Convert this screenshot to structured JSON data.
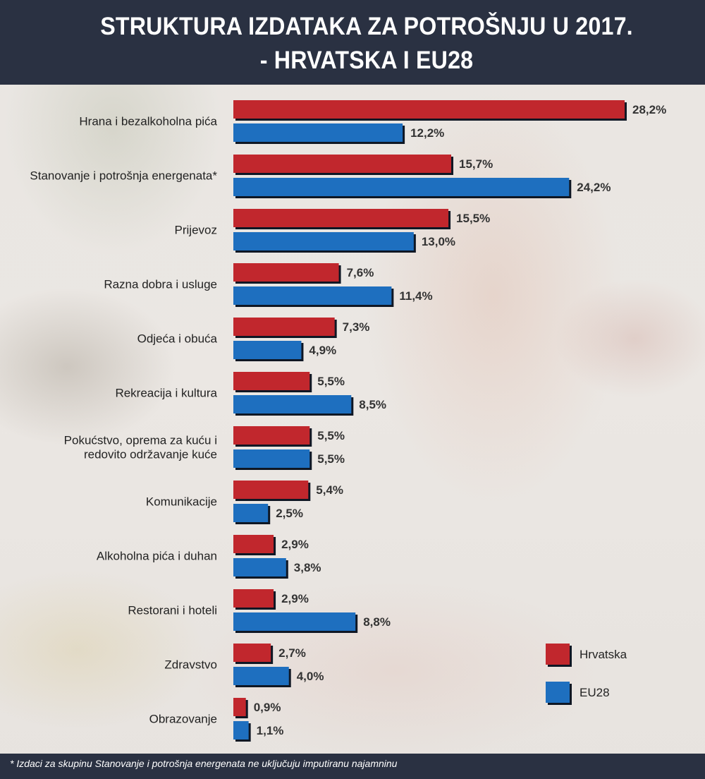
{
  "title_lines": [
    "STRUKTURA IZDATAKA ZA POTROŠNJU U 2017.",
    "- HRVATSKA I EU28"
  ],
  "footnote": "* Izdaci za skupinu Stanovanje i potrošnja energenata ne uključuju imputiranu najamninu",
  "colors": {
    "hrvatska": "#c1272d",
    "eu28": "#1e6fbf",
    "header": "#2a3142"
  },
  "chart_data": {
    "type": "bar",
    "orientation": "horizontal",
    "categories": [
      "Hrana i bezalkoholna pića",
      "Stanovanje i potrošnja energenata*",
      "Prijevoz",
      "Razna dobra i usluge",
      "Odjeća i obuća",
      "Rekreacija i kultura",
      [
        "Pokućstvo, oprema za kuću i",
        "redovito održavanje kuće"
      ],
      "Komunikacije",
      "Alkoholna pića i duhan",
      "Restorani i hoteli",
      "Zdravstvo",
      "Obrazovanje"
    ],
    "series": [
      {
        "name": "Hrvatska",
        "color": "#c1272d",
        "values": [
          28.2,
          15.7,
          15.5,
          7.6,
          7.3,
          5.5,
          5.5,
          5.4,
          2.9,
          2.9,
          2.7,
          0.9
        ]
      },
      {
        "name": "EU28",
        "color": "#1e6fbf",
        "values": [
          12.2,
          24.2,
          13.0,
          11.4,
          4.9,
          8.5,
          5.5,
          2.5,
          3.8,
          8.8,
          4.0,
          1.1
        ]
      }
    ],
    "value_labels": [
      [
        "28,2%",
        "15,7%",
        "15,5%",
        "7,6%",
        "7,3%",
        "5,5%",
        "5,5%",
        "5,4%",
        "2,9%",
        "2,9%",
        "2,7%",
        "0,9%"
      ],
      [
        "12,2%",
        "24,2%",
        "13,0%",
        "11,4%",
        "4,9%",
        "8,5%",
        "5,5%",
        "2,5%",
        "3,8%",
        "8,8%",
        "4,0%",
        "1,1%"
      ]
    ],
    "xlim": [
      0,
      28.2
    ],
    "legend_position": "bottom-right",
    "grid": false
  }
}
